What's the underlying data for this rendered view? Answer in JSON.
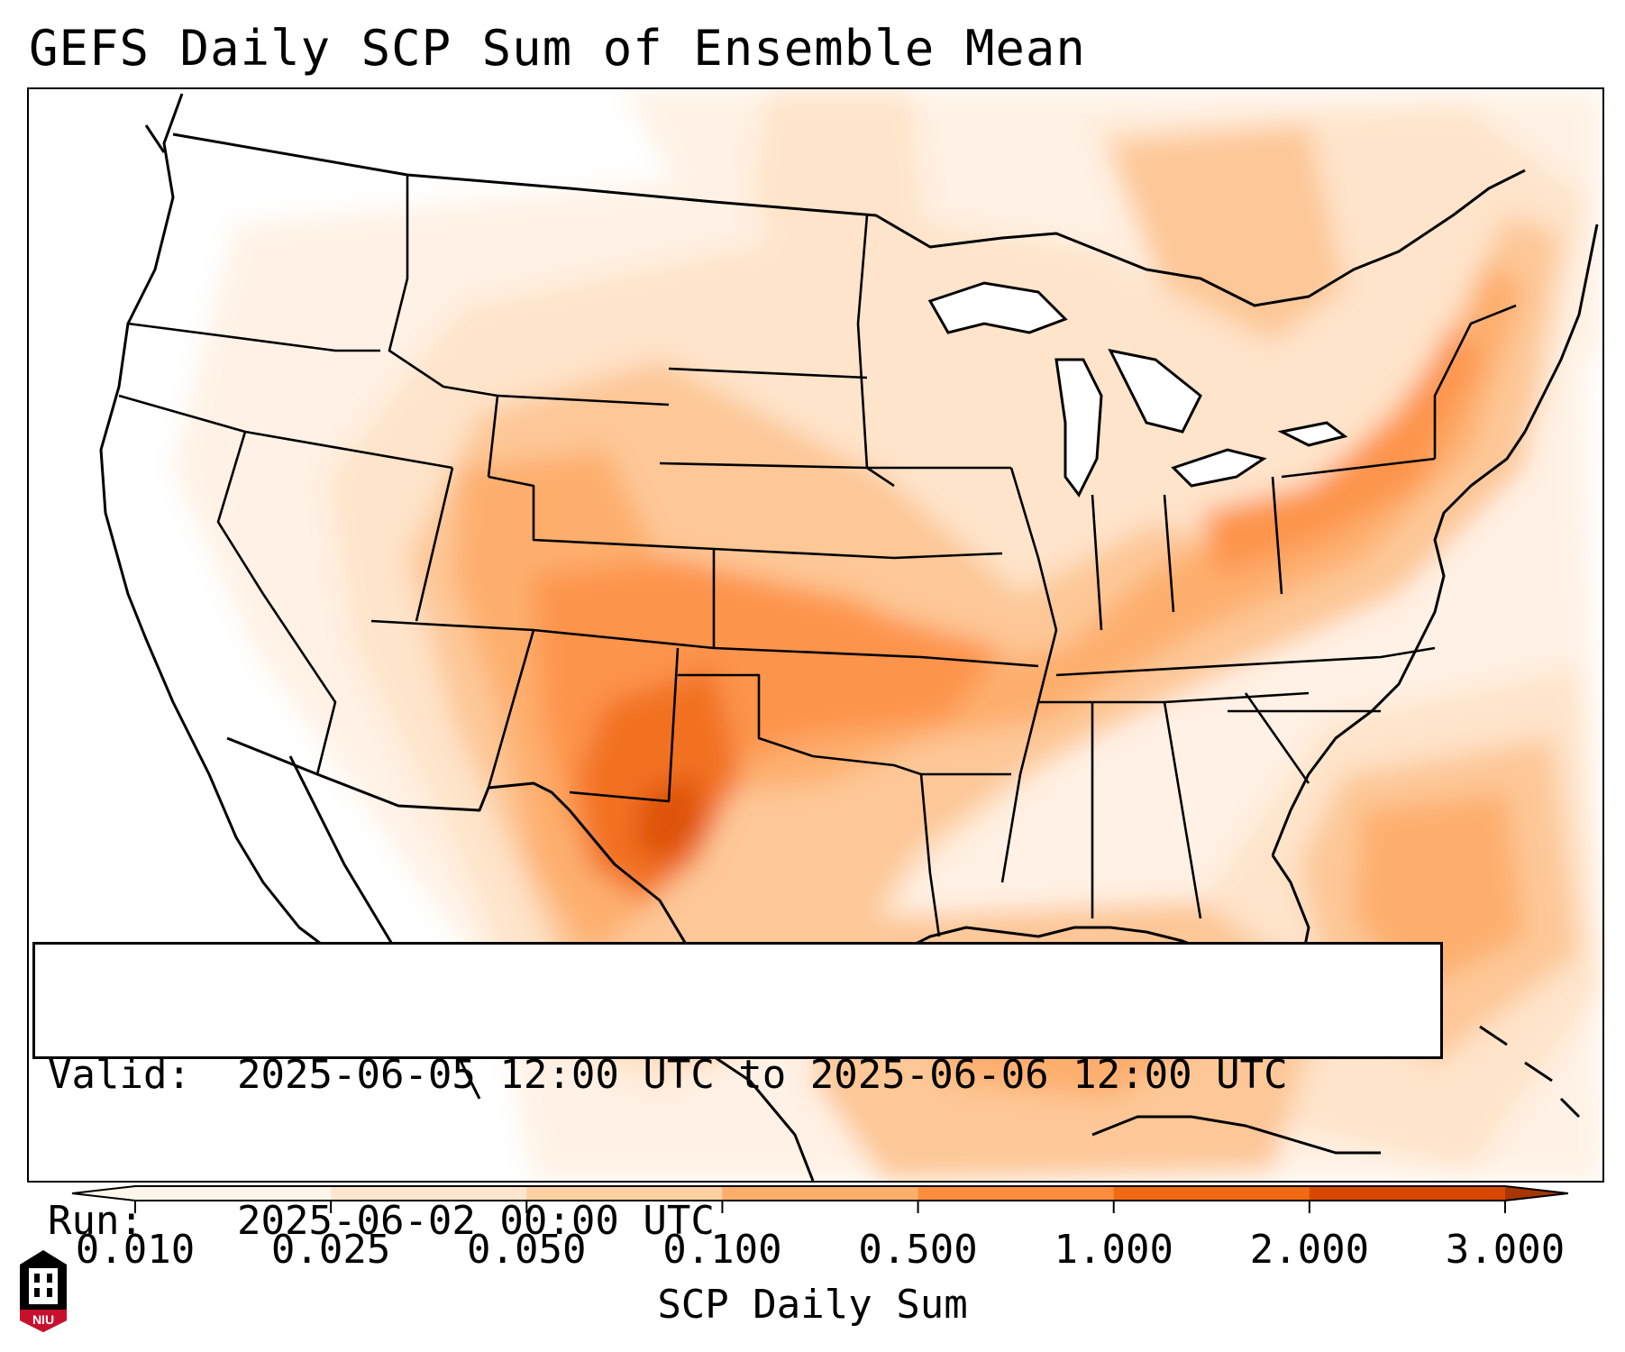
{
  "title": "GEFS Daily SCP Sum of Ensemble Mean",
  "info": {
    "valid_label": "Valid:",
    "valid_value": "2025-06-05 12:00 UTC to 2025-06-06 12:00 UTC",
    "run_label": "Run:",
    "run_value": "2025-06-02 00:00 UTC"
  },
  "colorbar": {
    "label": "SCP Daily Sum",
    "ticks": [
      "0.010",
      "0.025",
      "0.050",
      "0.100",
      "0.500",
      "1.000",
      "2.000",
      "3.000"
    ],
    "colors": [
      "#fff5eb",
      "#fee6ce",
      "#fdd0a2",
      "#fdae6b",
      "#fd8d3c",
      "#f16913",
      "#d94801",
      "#a63603"
    ]
  },
  "logo": {
    "text": "NIU",
    "colors": {
      "primary": "#c8102e",
      "dark": "#000000"
    }
  },
  "map": {
    "region": "CONUS",
    "colors": {
      "land_edge": "#000000",
      "ocean": "#ffffff"
    }
  }
}
